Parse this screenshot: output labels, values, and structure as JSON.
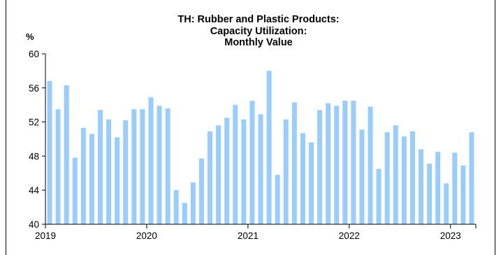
{
  "chart_data": {
    "type": "bar",
    "title_lines": [
      "TH: Rubber and Plastic Products:",
      "Capacity Utilization:",
      "Monthly Value"
    ],
    "ylabel": "%",
    "ylim": [
      40,
      60
    ],
    "yticks": [
      40,
      44,
      48,
      52,
      56,
      60
    ],
    "xtick_labels": [
      "2019",
      "2020",
      "2021",
      "2022",
      "2023"
    ],
    "grid": false,
    "series_color": "#99ccff",
    "categories": [
      "2019-01",
      "2019-02",
      "2019-03",
      "2019-04",
      "2019-05",
      "2019-06",
      "2019-07",
      "2019-08",
      "2019-09",
      "2019-10",
      "2019-11",
      "2019-12",
      "2020-01",
      "2020-02",
      "2020-03",
      "2020-04",
      "2020-05",
      "2020-06",
      "2020-07",
      "2020-08",
      "2020-09",
      "2020-10",
      "2020-11",
      "2020-12",
      "2021-01",
      "2021-02",
      "2021-03",
      "2021-04",
      "2021-05",
      "2021-06",
      "2021-07",
      "2021-08",
      "2021-09",
      "2021-10",
      "2021-11",
      "2021-12",
      "2022-01",
      "2022-02",
      "2022-03",
      "2022-04",
      "2022-05",
      "2022-06",
      "2022-07",
      "2022-08",
      "2022-09",
      "2022-10",
      "2022-11",
      "2022-12",
      "2023-01",
      "2023-02",
      "2023-03"
    ],
    "values": [
      56.8,
      53.5,
      56.3,
      47.8,
      51.3,
      50.6,
      53.4,
      52.3,
      50.2,
      52.2,
      53.5,
      53.5,
      54.9,
      53.9,
      53.6,
      44.0,
      42.5,
      44.9,
      47.7,
      50.9,
      51.6,
      52.5,
      54.0,
      52.3,
      54.5,
      52.9,
      58.0,
      45.8,
      52.3,
      54.3,
      50.7,
      49.6,
      53.4,
      54.2,
      53.9,
      54.5,
      54.5,
      51.1,
      53.8,
      46.5,
      50.8,
      51.6,
      50.3,
      50.9,
      48.8,
      47.1,
      48.5,
      44.8,
      48.4,
      46.9,
      50.8
    ]
  }
}
